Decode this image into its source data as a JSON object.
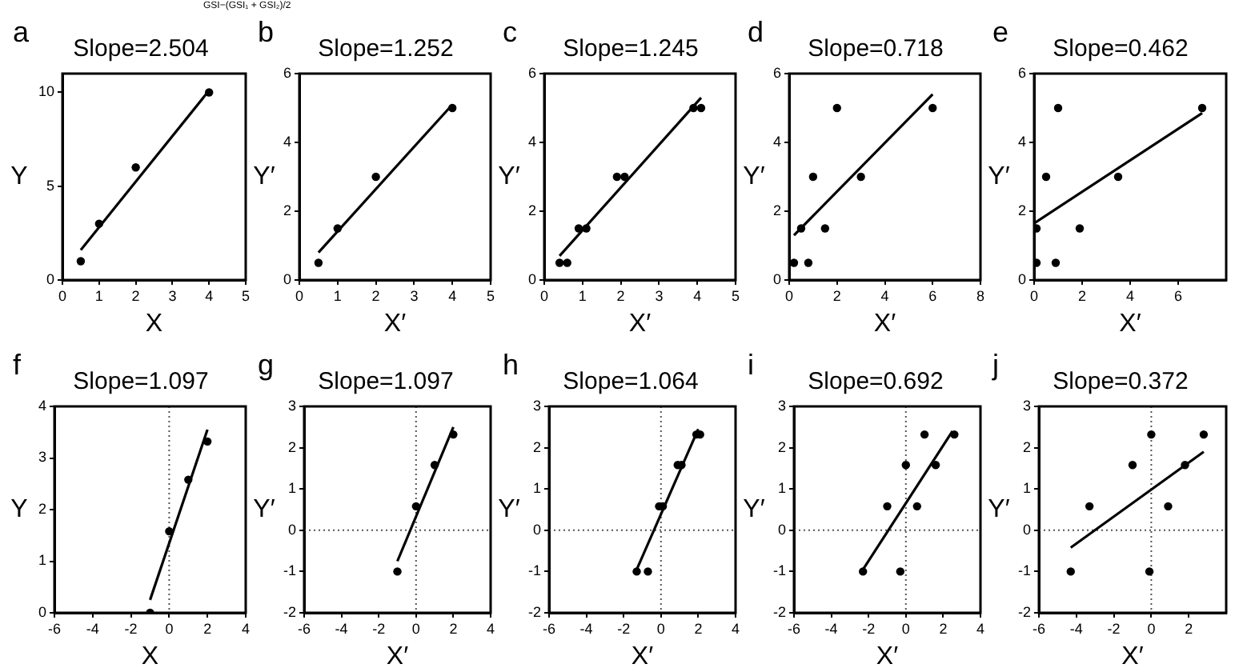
{
  "chart_data": [
    {
      "type": "scatter",
      "title": "Slope=2.504",
      "xlabel": "X",
      "ylabel": "Y",
      "annotations": [
        "a",
        "GSI−(GSI₁ + GSI₂)/2"
      ],
      "xlim": [
        0,
        5
      ],
      "xticks": [
        0,
        1,
        2,
        3,
        4,
        5
      ],
      "ylim": [
        0,
        11
      ],
      "yticks": [
        0,
        5,
        10
      ],
      "grid": false,
      "legend": false,
      "series": [
        {
          "type": "scatter",
          "marker": "circle",
          "color": "#000000",
          "x": [
            0.5,
            1,
            2,
            4
          ],
          "values": [
            1,
            3,
            6,
            10
          ]
        },
        {
          "type": "line",
          "marker": "none",
          "color": "#000000",
          "x": [
            0.5,
            4
          ],
          "values": [
            1.6,
            10.1
          ]
        }
      ]
    },
    {
      "type": "scatter",
      "title": "Slope=1.252",
      "xlabel": "X′",
      "ylabel": "Y′",
      "annotations": [
        "b"
      ],
      "xlim": [
        0,
        5
      ],
      "xticks": [
        0,
        1,
        2,
        3,
        4,
        5
      ],
      "ylim": [
        0,
        6
      ],
      "yticks": [
        0,
        2,
        4,
        6
      ],
      "grid": false,
      "legend": false,
      "series": [
        {
          "type": "scatter",
          "marker": "circle",
          "color": "#000000",
          "x": [
            0.5,
            1,
            2,
            4
          ],
          "values": [
            0.5,
            1.5,
            3,
            5
          ]
        },
        {
          "type": "line",
          "marker": "none",
          "color": "#000000",
          "x": [
            0.5,
            4
          ],
          "values": [
            0.8,
            5.1
          ]
        }
      ]
    },
    {
      "type": "scatter",
      "title": "Slope=1.245",
      "xlabel": "X′",
      "ylabel": "Y′",
      "annotations": [
        "c"
      ],
      "xlim": [
        0,
        5
      ],
      "xticks": [
        0,
        1,
        2,
        3,
        4,
        5
      ],
      "ylim": [
        0,
        6
      ],
      "yticks": [
        0,
        2,
        4,
        6
      ],
      "grid": false,
      "legend": false,
      "series": [
        {
          "type": "scatter",
          "marker": "circle",
          "color": "#000000",
          "x": [
            0.4,
            0.6,
            0.9,
            1.1,
            1.9,
            2.1,
            3.9,
            4.1
          ],
          "values": [
            0.5,
            0.5,
            1.5,
            1.5,
            3,
            3,
            5,
            5
          ]
        },
        {
          "type": "line",
          "marker": "none",
          "color": "#000000",
          "x": [
            0.4,
            4.1
          ],
          "values": [
            0.7,
            5.3
          ]
        }
      ]
    },
    {
      "type": "scatter",
      "title": "Slope=0.718",
      "xlabel": "X′",
      "ylabel": "Y′",
      "annotations": [
        "d"
      ],
      "xlim": [
        0,
        8
      ],
      "xticks": [
        0,
        2,
        4,
        6,
        8
      ],
      "ylim": [
        0,
        6
      ],
      "yticks": [
        0,
        2,
        4,
        6
      ],
      "grid": false,
      "legend": false,
      "series": [
        {
          "type": "scatter",
          "marker": "circle",
          "color": "#000000",
          "x": [
            0.2,
            0.8,
            0.5,
            1.5,
            1,
            3,
            2,
            6
          ],
          "values": [
            0.5,
            0.5,
            1.5,
            1.5,
            3,
            3,
            5,
            5
          ]
        },
        {
          "type": "line",
          "marker": "none",
          "color": "#000000",
          "x": [
            0.2,
            6
          ],
          "values": [
            1.3,
            5.4
          ]
        }
      ]
    },
    {
      "type": "scatter",
      "title": "Slope=0.462",
      "xlabel": "X′",
      "ylabel": "Y′",
      "annotations": [
        "e"
      ],
      "xlim": [
        0,
        8
      ],
      "xticks": [
        0,
        2,
        4,
        6
      ],
      "ylim": [
        0,
        6
      ],
      "yticks": [
        0,
        2,
        4,
        6
      ],
      "grid": false,
      "legend": false,
      "series": [
        {
          "type": "scatter",
          "marker": "circle",
          "color": "#000000",
          "x": [
            0.1,
            0.9,
            0.1,
            1.9,
            0.5,
            3.5,
            1,
            7
          ],
          "values": [
            0.5,
            0.5,
            1.5,
            1.5,
            3,
            3,
            5,
            5
          ]
        },
        {
          "type": "line",
          "marker": "none",
          "color": "#000000",
          "x": [
            0,
            7
          ],
          "values": [
            1.65,
            4.85
          ]
        }
      ]
    },
    {
      "type": "scatter",
      "title": "Slope=1.097",
      "xlabel": "X",
      "ylabel": "Y",
      "annotations": [
        "f"
      ],
      "xlim": [
        -6,
        4
      ],
      "xticks": [
        -6,
        -4,
        -2,
        0,
        2,
        4
      ],
      "ylim": [
        0,
        4
      ],
      "yticks": [
        0,
        1,
        2,
        3,
        4
      ],
      "grid": false,
      "legend": false,
      "ref_lines": [
        {
          "axis": "x",
          "value": 0,
          "line_style": "dotted"
        }
      ],
      "series": [
        {
          "type": "scatter",
          "marker": "circle",
          "color": "#000000",
          "x": [
            -1,
            0,
            1,
            2
          ],
          "values": [
            0,
            1.58,
            2.58,
            3.32
          ]
        },
        {
          "type": "line",
          "marker": "none",
          "color": "#000000",
          "x": [
            -1,
            2
          ],
          "values": [
            0.25,
            3.55
          ]
        }
      ]
    },
    {
      "type": "scatter",
      "title": "Slope=1.097",
      "xlabel": "X′",
      "ylabel": "Y′",
      "annotations": [
        "g"
      ],
      "xlim": [
        -6,
        4
      ],
      "xticks": [
        -6,
        -4,
        -2,
        0,
        2,
        4
      ],
      "ylim": [
        -2,
        3
      ],
      "yticks": [
        -2,
        -1,
        0,
        1,
        2,
        3
      ],
      "grid": false,
      "legend": false,
      "ref_lines": [
        {
          "axis": "x",
          "value": 0,
          "line_style": "dotted"
        },
        {
          "axis": "y",
          "value": 0,
          "line_style": "dotted"
        }
      ],
      "series": [
        {
          "type": "scatter",
          "marker": "circle",
          "color": "#000000",
          "x": [
            -1,
            0,
            1,
            2
          ],
          "values": [
            -1,
            0.58,
            1.58,
            2.32
          ]
        },
        {
          "type": "line",
          "marker": "none",
          "color": "#000000",
          "x": [
            -1,
            2
          ],
          "values": [
            -0.75,
            2.5
          ]
        }
      ]
    },
    {
      "type": "scatter",
      "title": "Slope=1.064",
      "xlabel": "X′",
      "ylabel": "Y′",
      "annotations": [
        "h"
      ],
      "xlim": [
        -6,
        4
      ],
      "xticks": [
        -6,
        -4,
        -2,
        0,
        2,
        4
      ],
      "ylim": [
        -2,
        3
      ],
      "yticks": [
        -2,
        -1,
        0,
        1,
        2,
        3
      ],
      "grid": false,
      "legend": false,
      "ref_lines": [
        {
          "axis": "x",
          "value": 0,
          "line_style": "dotted"
        },
        {
          "axis": "y",
          "value": 0,
          "line_style": "dotted"
        }
      ],
      "series": [
        {
          "type": "scatter",
          "marker": "circle",
          "color": "#000000",
          "x": [
            -1.3,
            -0.7,
            -0.1,
            0.1,
            0.9,
            1.1,
            1.9,
            2.1
          ],
          "values": [
            -1,
            -1,
            0.58,
            0.58,
            1.58,
            1.58,
            2.32,
            2.32
          ]
        },
        {
          "type": "line",
          "marker": "none",
          "color": "#000000",
          "x": [
            -1.3,
            2
          ],
          "values": [
            -0.95,
            2.45
          ]
        }
      ]
    },
    {
      "type": "scatter",
      "title": "Slope=0.692",
      "xlabel": "X′",
      "ylabel": "Y′",
      "annotations": [
        "i"
      ],
      "xlim": [
        -6,
        4
      ],
      "xticks": [
        -6,
        -4,
        -2,
        0,
        2,
        4
      ],
      "ylim": [
        -2,
        3
      ],
      "yticks": [
        -2,
        -1,
        0,
        1,
        2,
        3
      ],
      "grid": false,
      "legend": false,
      "ref_lines": [
        {
          "axis": "x",
          "value": 0,
          "line_style": "dotted"
        },
        {
          "axis": "y",
          "value": 0,
          "line_style": "dotted"
        }
      ],
      "series": [
        {
          "type": "scatter",
          "marker": "circle",
          "color": "#000000",
          "x": [
            -2.3,
            -0.3,
            -1,
            0.6,
            0,
            1.6,
            1,
            2.6
          ],
          "values": [
            -1,
            -1,
            0.58,
            0.58,
            1.58,
            1.58,
            2.32,
            2.32
          ]
        },
        {
          "type": "line",
          "marker": "none",
          "color": "#000000",
          "x": [
            -2.3,
            2.5
          ],
          "values": [
            -0.95,
            2.4
          ]
        }
      ]
    },
    {
      "type": "scatter",
      "title": "Slope=0.372",
      "xlabel": "X′",
      "ylabel": "Y′",
      "annotations": [
        "j"
      ],
      "xlim": [
        -6,
        4
      ],
      "xticks": [
        -6,
        -4,
        -2,
        0,
        2
      ],
      "ylim": [
        -2,
        3
      ],
      "yticks": [
        -2,
        -1,
        0,
        1,
        2,
        3
      ],
      "grid": false,
      "legend": false,
      "ref_lines": [
        {
          "axis": "x",
          "value": 0,
          "line_style": "dotted"
        },
        {
          "axis": "y",
          "value": 0,
          "line_style": "dotted"
        }
      ],
      "series": [
        {
          "type": "scatter",
          "marker": "circle",
          "color": "#000000",
          "x": [
            -4.3,
            -0.1,
            -3.3,
            0.9,
            -1,
            1.8,
            0,
            2.8
          ],
          "values": [
            -1,
            -1,
            0.58,
            0.58,
            1.58,
            1.58,
            2.32,
            2.32
          ]
        },
        {
          "type": "line",
          "marker": "none",
          "color": "#000000",
          "x": [
            -4.3,
            2.8
          ],
          "values": [
            -0.42,
            1.9
          ]
        }
      ]
    }
  ]
}
